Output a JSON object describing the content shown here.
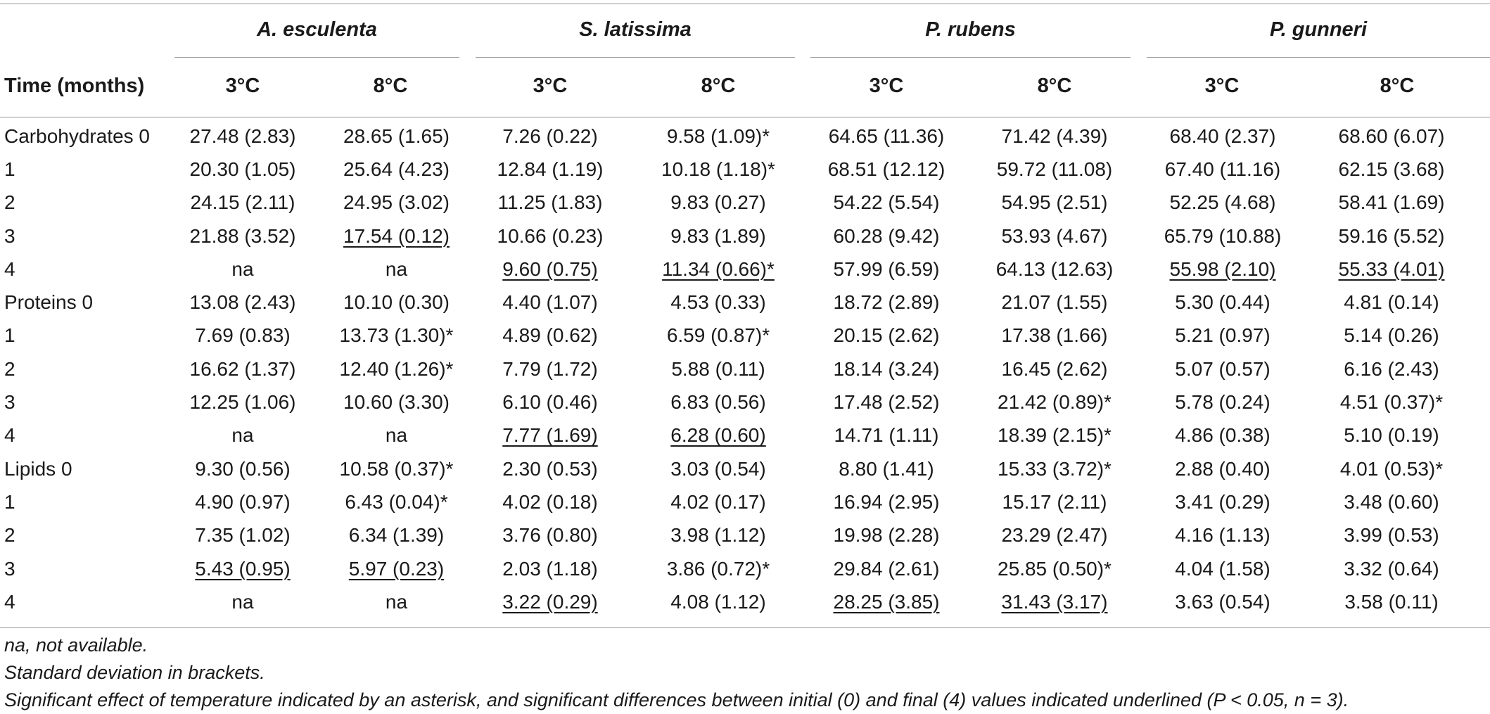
{
  "table": {
    "row_header_label": "Time (months)",
    "species": [
      "A. esculenta",
      "S. latissima",
      "P. rubens",
      "P. gunneri"
    ],
    "temperatures": [
      "3°C",
      "8°C",
      "3°C",
      "8°C",
      "3°C",
      "8°C",
      "3°C",
      "8°C"
    ],
    "rows": [
      {
        "label": "Carbohydrates 0",
        "cells": [
          {
            "text": "27.48 (2.83)",
            "underlined": false
          },
          {
            "text": "28.65 (1.65)",
            "underlined": false
          },
          {
            "text": "7.26 (0.22)",
            "underlined": false
          },
          {
            "text": "9.58 (1.09)*",
            "underlined": false
          },
          {
            "text": "64.65 (11.36)",
            "underlined": false
          },
          {
            "text": "71.42 (4.39)",
            "underlined": false
          },
          {
            "text": "68.40 (2.37)",
            "underlined": false
          },
          {
            "text": "68.60 (6.07)",
            "underlined": false
          }
        ]
      },
      {
        "label": "1",
        "cells": [
          {
            "text": "20.30 (1.05)",
            "underlined": false
          },
          {
            "text": "25.64 (4.23)",
            "underlined": false
          },
          {
            "text": "12.84 (1.19)",
            "underlined": false
          },
          {
            "text": "10.18 (1.18)*",
            "underlined": false
          },
          {
            "text": "68.51 (12.12)",
            "underlined": false
          },
          {
            "text": "59.72 (11.08)",
            "underlined": false
          },
          {
            "text": "67.40 (11.16)",
            "underlined": false
          },
          {
            "text": "62.15 (3.68)",
            "underlined": false
          }
        ]
      },
      {
        "label": "2",
        "cells": [
          {
            "text": "24.15 (2.11)",
            "underlined": false
          },
          {
            "text": "24.95 (3.02)",
            "underlined": false
          },
          {
            "text": "11.25 (1.83)",
            "underlined": false
          },
          {
            "text": "9.83 (0.27)",
            "underlined": false
          },
          {
            "text": "54.22 (5.54)",
            "underlined": false
          },
          {
            "text": "54.95 (2.51)",
            "underlined": false
          },
          {
            "text": "52.25 (4.68)",
            "underlined": false
          },
          {
            "text": "58.41 (1.69)",
            "underlined": false
          }
        ]
      },
      {
        "label": "3",
        "cells": [
          {
            "text": "21.88 (3.52)",
            "underlined": false
          },
          {
            "text": "17.54 (0.12)",
            "underlined": true
          },
          {
            "text": "10.66 (0.23)",
            "underlined": false
          },
          {
            "text": "9.83 (1.89)",
            "underlined": false
          },
          {
            "text": "60.28 (9.42)",
            "underlined": false
          },
          {
            "text": "53.93 (4.67)",
            "underlined": false
          },
          {
            "text": "65.79 (10.88)",
            "underlined": false
          },
          {
            "text": "59.16 (5.52)",
            "underlined": false
          }
        ]
      },
      {
        "label": "4",
        "cells": [
          {
            "text": "na",
            "underlined": false
          },
          {
            "text": "na",
            "underlined": false
          },
          {
            "text": "9.60 (0.75)",
            "underlined": true
          },
          {
            "text": "11.34 (0.66)*",
            "underlined": true
          },
          {
            "text": "57.99 (6.59)",
            "underlined": false
          },
          {
            "text": "64.13 (12.63)",
            "underlined": false
          },
          {
            "text": "55.98 (2.10)",
            "underlined": true
          },
          {
            "text": "55.33 (4.01)",
            "underlined": true
          }
        ]
      },
      {
        "label": "Proteins 0",
        "cells": [
          {
            "text": "13.08 (2.43)",
            "underlined": false
          },
          {
            "text": "10.10 (0.30)",
            "underlined": false
          },
          {
            "text": "4.40 (1.07)",
            "underlined": false
          },
          {
            "text": "4.53 (0.33)",
            "underlined": false
          },
          {
            "text": "18.72 (2.89)",
            "underlined": false
          },
          {
            "text": "21.07 (1.55)",
            "underlined": false
          },
          {
            "text": "5.30 (0.44)",
            "underlined": false
          },
          {
            "text": "4.81 (0.14)",
            "underlined": false
          }
        ]
      },
      {
        "label": "1",
        "cells": [
          {
            "text": "7.69 (0.83)",
            "underlined": false
          },
          {
            "text": "13.73 (1.30)*",
            "underlined": false
          },
          {
            "text": "4.89 (0.62)",
            "underlined": false
          },
          {
            "text": "6.59 (0.87)*",
            "underlined": false
          },
          {
            "text": "20.15 (2.62)",
            "underlined": false
          },
          {
            "text": "17.38 (1.66)",
            "underlined": false
          },
          {
            "text": "5.21 (0.97)",
            "underlined": false
          },
          {
            "text": "5.14 (0.26)",
            "underlined": false
          }
        ]
      },
      {
        "label": "2",
        "cells": [
          {
            "text": "16.62 (1.37)",
            "underlined": false
          },
          {
            "text": "12.40 (1.26)*",
            "underlined": false
          },
          {
            "text": "7.79 (1.72)",
            "underlined": false
          },
          {
            "text": "5.88 (0.11)",
            "underlined": false
          },
          {
            "text": "18.14 (3.24)",
            "underlined": false
          },
          {
            "text": "16.45 (2.62)",
            "underlined": false
          },
          {
            "text": "5.07 (0.57)",
            "underlined": false
          },
          {
            "text": "6.16 (2.43)",
            "underlined": false
          }
        ]
      },
      {
        "label": "3",
        "cells": [
          {
            "text": "12.25 (1.06)",
            "underlined": false
          },
          {
            "text": "10.60 (3.30)",
            "underlined": false
          },
          {
            "text": "6.10 (0.46)",
            "underlined": false
          },
          {
            "text": "6.83 (0.56)",
            "underlined": false
          },
          {
            "text": "17.48 (2.52)",
            "underlined": false
          },
          {
            "text": "21.42 (0.89)*",
            "underlined": false
          },
          {
            "text": "5.78 (0.24)",
            "underlined": false
          },
          {
            "text": "4.51 (0.37)*",
            "underlined": false
          }
        ]
      },
      {
        "label": "4",
        "cells": [
          {
            "text": "na",
            "underlined": false
          },
          {
            "text": "na",
            "underlined": false
          },
          {
            "text": "7.77 (1.69)",
            "underlined": true
          },
          {
            "text": "6.28 (0.60)",
            "underlined": true
          },
          {
            "text": "14.71 (1.11)",
            "underlined": false
          },
          {
            "text": "18.39 (2.15)*",
            "underlined": false
          },
          {
            "text": "4.86 (0.38)",
            "underlined": false
          },
          {
            "text": "5.10 (0.19)",
            "underlined": false
          }
        ]
      },
      {
        "label": "Lipids 0",
        "cells": [
          {
            "text": "9.30 (0.56)",
            "underlined": false
          },
          {
            "text": "10.58 (0.37)*",
            "underlined": false
          },
          {
            "text": "2.30 (0.53)",
            "underlined": false
          },
          {
            "text": "3.03 (0.54)",
            "underlined": false
          },
          {
            "text": "8.80 (1.41)",
            "underlined": false
          },
          {
            "text": "15.33 (3.72)*",
            "underlined": false
          },
          {
            "text": "2.88 (0.40)",
            "underlined": false
          },
          {
            "text": "4.01 (0.53)*",
            "underlined": false
          }
        ]
      },
      {
        "label": "1",
        "cells": [
          {
            "text": "4.90 (0.97)",
            "underlined": false
          },
          {
            "text": "6.43 (0.04)*",
            "underlined": false
          },
          {
            "text": "4.02 (0.18)",
            "underlined": false
          },
          {
            "text": "4.02 (0.17)",
            "underlined": false
          },
          {
            "text": "16.94 (2.95)",
            "underlined": false
          },
          {
            "text": "15.17 (2.11)",
            "underlined": false
          },
          {
            "text": "3.41 (0.29)",
            "underlined": false
          },
          {
            "text": "3.48 (0.60)",
            "underlined": false
          }
        ]
      },
      {
        "label": "2",
        "cells": [
          {
            "text": "7.35 (1.02)",
            "underlined": false
          },
          {
            "text": "6.34 (1.39)",
            "underlined": false
          },
          {
            "text": "3.76 (0.80)",
            "underlined": false
          },
          {
            "text": "3.98 (1.12)",
            "underlined": false
          },
          {
            "text": "19.98 (2.28)",
            "underlined": false
          },
          {
            "text": "23.29 (2.47)",
            "underlined": false
          },
          {
            "text": "4.16 (1.13)",
            "underlined": false
          },
          {
            "text": "3.99 (0.53)",
            "underlined": false
          }
        ]
      },
      {
        "label": "3",
        "cells": [
          {
            "text": "5.43 (0.95)",
            "underlined": true
          },
          {
            "text": "5.97 (0.23)",
            "underlined": true
          },
          {
            "text": "2.03 (1.18)",
            "underlined": false
          },
          {
            "text": "3.86 (0.72)*",
            "underlined": false
          },
          {
            "text": "29.84 (2.61)",
            "underlined": false
          },
          {
            "text": "25.85 (0.50)*",
            "underlined": false
          },
          {
            "text": "4.04 (1.58)",
            "underlined": false
          },
          {
            "text": "3.32 (0.64)",
            "underlined": false
          }
        ]
      },
      {
        "label": "4",
        "cells": [
          {
            "text": "na",
            "underlined": false
          },
          {
            "text": "na",
            "underlined": false
          },
          {
            "text": "3.22 (0.29)",
            "underlined": true
          },
          {
            "text": "4.08 (1.12)",
            "underlined": false
          },
          {
            "text": "28.25 (3.85)",
            "underlined": true
          },
          {
            "text": "31.43 (3.17)",
            "underlined": true
          },
          {
            "text": "3.63 (0.54)",
            "underlined": false
          },
          {
            "text": "3.58 (0.11)",
            "underlined": false
          }
        ]
      }
    ]
  },
  "footnotes": [
    "na, not available.",
    "Standard deviation in brackets.",
    "Significant effect of temperature indicated by an asterisk, and significant differences between initial (0) and final (4) values indicated underlined (P < 0.05, n = 3)."
  ]
}
